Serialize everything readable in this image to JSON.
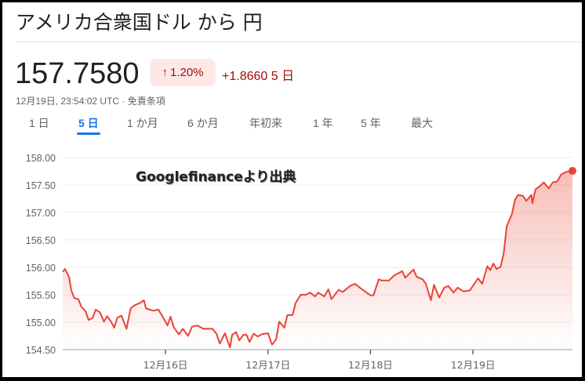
{
  "header": {
    "title": "アメリカ合衆国ドル から 円"
  },
  "quote": {
    "price": "157.7580",
    "change_percent": "1.20%",
    "change_arrow": "↑",
    "change_abs": "+1.8660 5 日",
    "timestamp": "12月19日, 23:54:02 UTC · 免責条項"
  },
  "tabs": [
    {
      "label": "1 日"
    },
    {
      "label": "5 日",
      "active": true
    },
    {
      "label": "1 か月"
    },
    {
      "label": "6 か月"
    },
    {
      "label": "年初来"
    },
    {
      "label": "1 年"
    },
    {
      "label": "5 年"
    },
    {
      "label": "最大"
    }
  ],
  "watermark": "Googlefinanceより出典",
  "colors": {
    "line": "#ea4335",
    "up": "#a50e0e",
    "accent": "#1a73e8"
  },
  "chart_data": {
    "type": "area",
    "ylim": [
      154.5,
      158.0
    ],
    "y_ticks": [
      "158.00",
      "157.50",
      "157.00",
      "156.50",
      "156.00",
      "155.50",
      "155.00",
      "154.50"
    ],
    "x_ticks": [
      {
        "x": 16,
        "label": "12月16日"
      },
      {
        "x": 17,
        "label": "12月17日"
      },
      {
        "x": 18,
        "label": "12月18日"
      },
      {
        "x": 19,
        "label": "12月19日"
      }
    ],
    "grid": true,
    "x": [
      15.0,
      15.02,
      15.06,
      15.08,
      15.11,
      15.15,
      15.18,
      15.22,
      15.25,
      15.29,
      15.32,
      15.36,
      15.4,
      15.43,
      15.47,
      15.5,
      15.53,
      15.57,
      15.62,
      15.66,
      15.7,
      15.75,
      15.79,
      15.81,
      15.88,
      15.93,
      15.97,
      16.02,
      16.05,
      16.08,
      16.13,
      16.17,
      16.22,
      16.26,
      16.31,
      16.37,
      16.46,
      16.5,
      16.53,
      16.58,
      16.63,
      16.65,
      16.69,
      16.72,
      16.76,
      16.79,
      16.82,
      16.86,
      16.9,
      16.94,
      17.0,
      17.04,
      17.08,
      17.11,
      17.16,
      17.19,
      17.24,
      17.27,
      17.32,
      17.37,
      17.41,
      17.46,
      17.49,
      17.55,
      17.59,
      17.62,
      17.69,
      17.73,
      17.8,
      17.85,
      17.91,
      18.0,
      18.03,
      18.08,
      18.11,
      18.18,
      18.23,
      18.31,
      18.34,
      18.42,
      18.45,
      18.51,
      18.54,
      18.59,
      18.62,
      18.67,
      18.72,
      18.76,
      18.81,
      18.85,
      18.91,
      18.97,
      19.05,
      19.09,
      19.14,
      19.17,
      19.2,
      19.23,
      19.27,
      19.3,
      19.33,
      19.38,
      19.41,
      19.44,
      19.49,
      19.52,
      19.57,
      19.58,
      19.61,
      19.66,
      19.69,
      19.74,
      19.78,
      19.82,
      19.86,
      19.91,
      19.96
    ],
    "y": [
      155.92,
      155.97,
      155.82,
      155.59,
      155.44,
      155.42,
      155.28,
      155.2,
      155.04,
      155.08,
      155.23,
      155.18,
      155.01,
      155.11,
      155.01,
      154.9,
      155.08,
      155.12,
      154.88,
      155.25,
      155.31,
      155.35,
      155.4,
      155.25,
      155.21,
      155.23,
      155.11,
      154.94,
      155.1,
      154.91,
      154.78,
      154.88,
      154.75,
      154.92,
      154.94,
      154.88,
      154.88,
      154.78,
      154.61,
      154.8,
      154.54,
      154.77,
      154.82,
      154.67,
      154.77,
      154.77,
      154.64,
      154.79,
      154.74,
      154.78,
      154.8,
      154.59,
      154.69,
      155.01,
      154.9,
      155.13,
      155.13,
      155.35,
      155.5,
      155.5,
      155.54,
      155.47,
      155.54,
      155.47,
      155.6,
      155.42,
      155.59,
      155.55,
      155.66,
      155.7,
      155.61,
      155.49,
      155.49,
      155.78,
      155.76,
      155.76,
      155.85,
      155.93,
      155.81,
      155.96,
      155.83,
      155.78,
      155.7,
      155.4,
      155.68,
      155.45,
      155.63,
      155.66,
      155.54,
      155.63,
      155.56,
      155.58,
      155.8,
      155.7,
      156.02,
      155.95,
      156.07,
      155.97,
      156.01,
      156.25,
      156.75,
      156.97,
      157.23,
      157.32,
      157.3,
      157.21,
      157.32,
      157.17,
      157.42,
      157.49,
      157.55,
      157.44,
      157.55,
      157.56,
      157.69,
      157.74,
      157.758
    ]
  }
}
